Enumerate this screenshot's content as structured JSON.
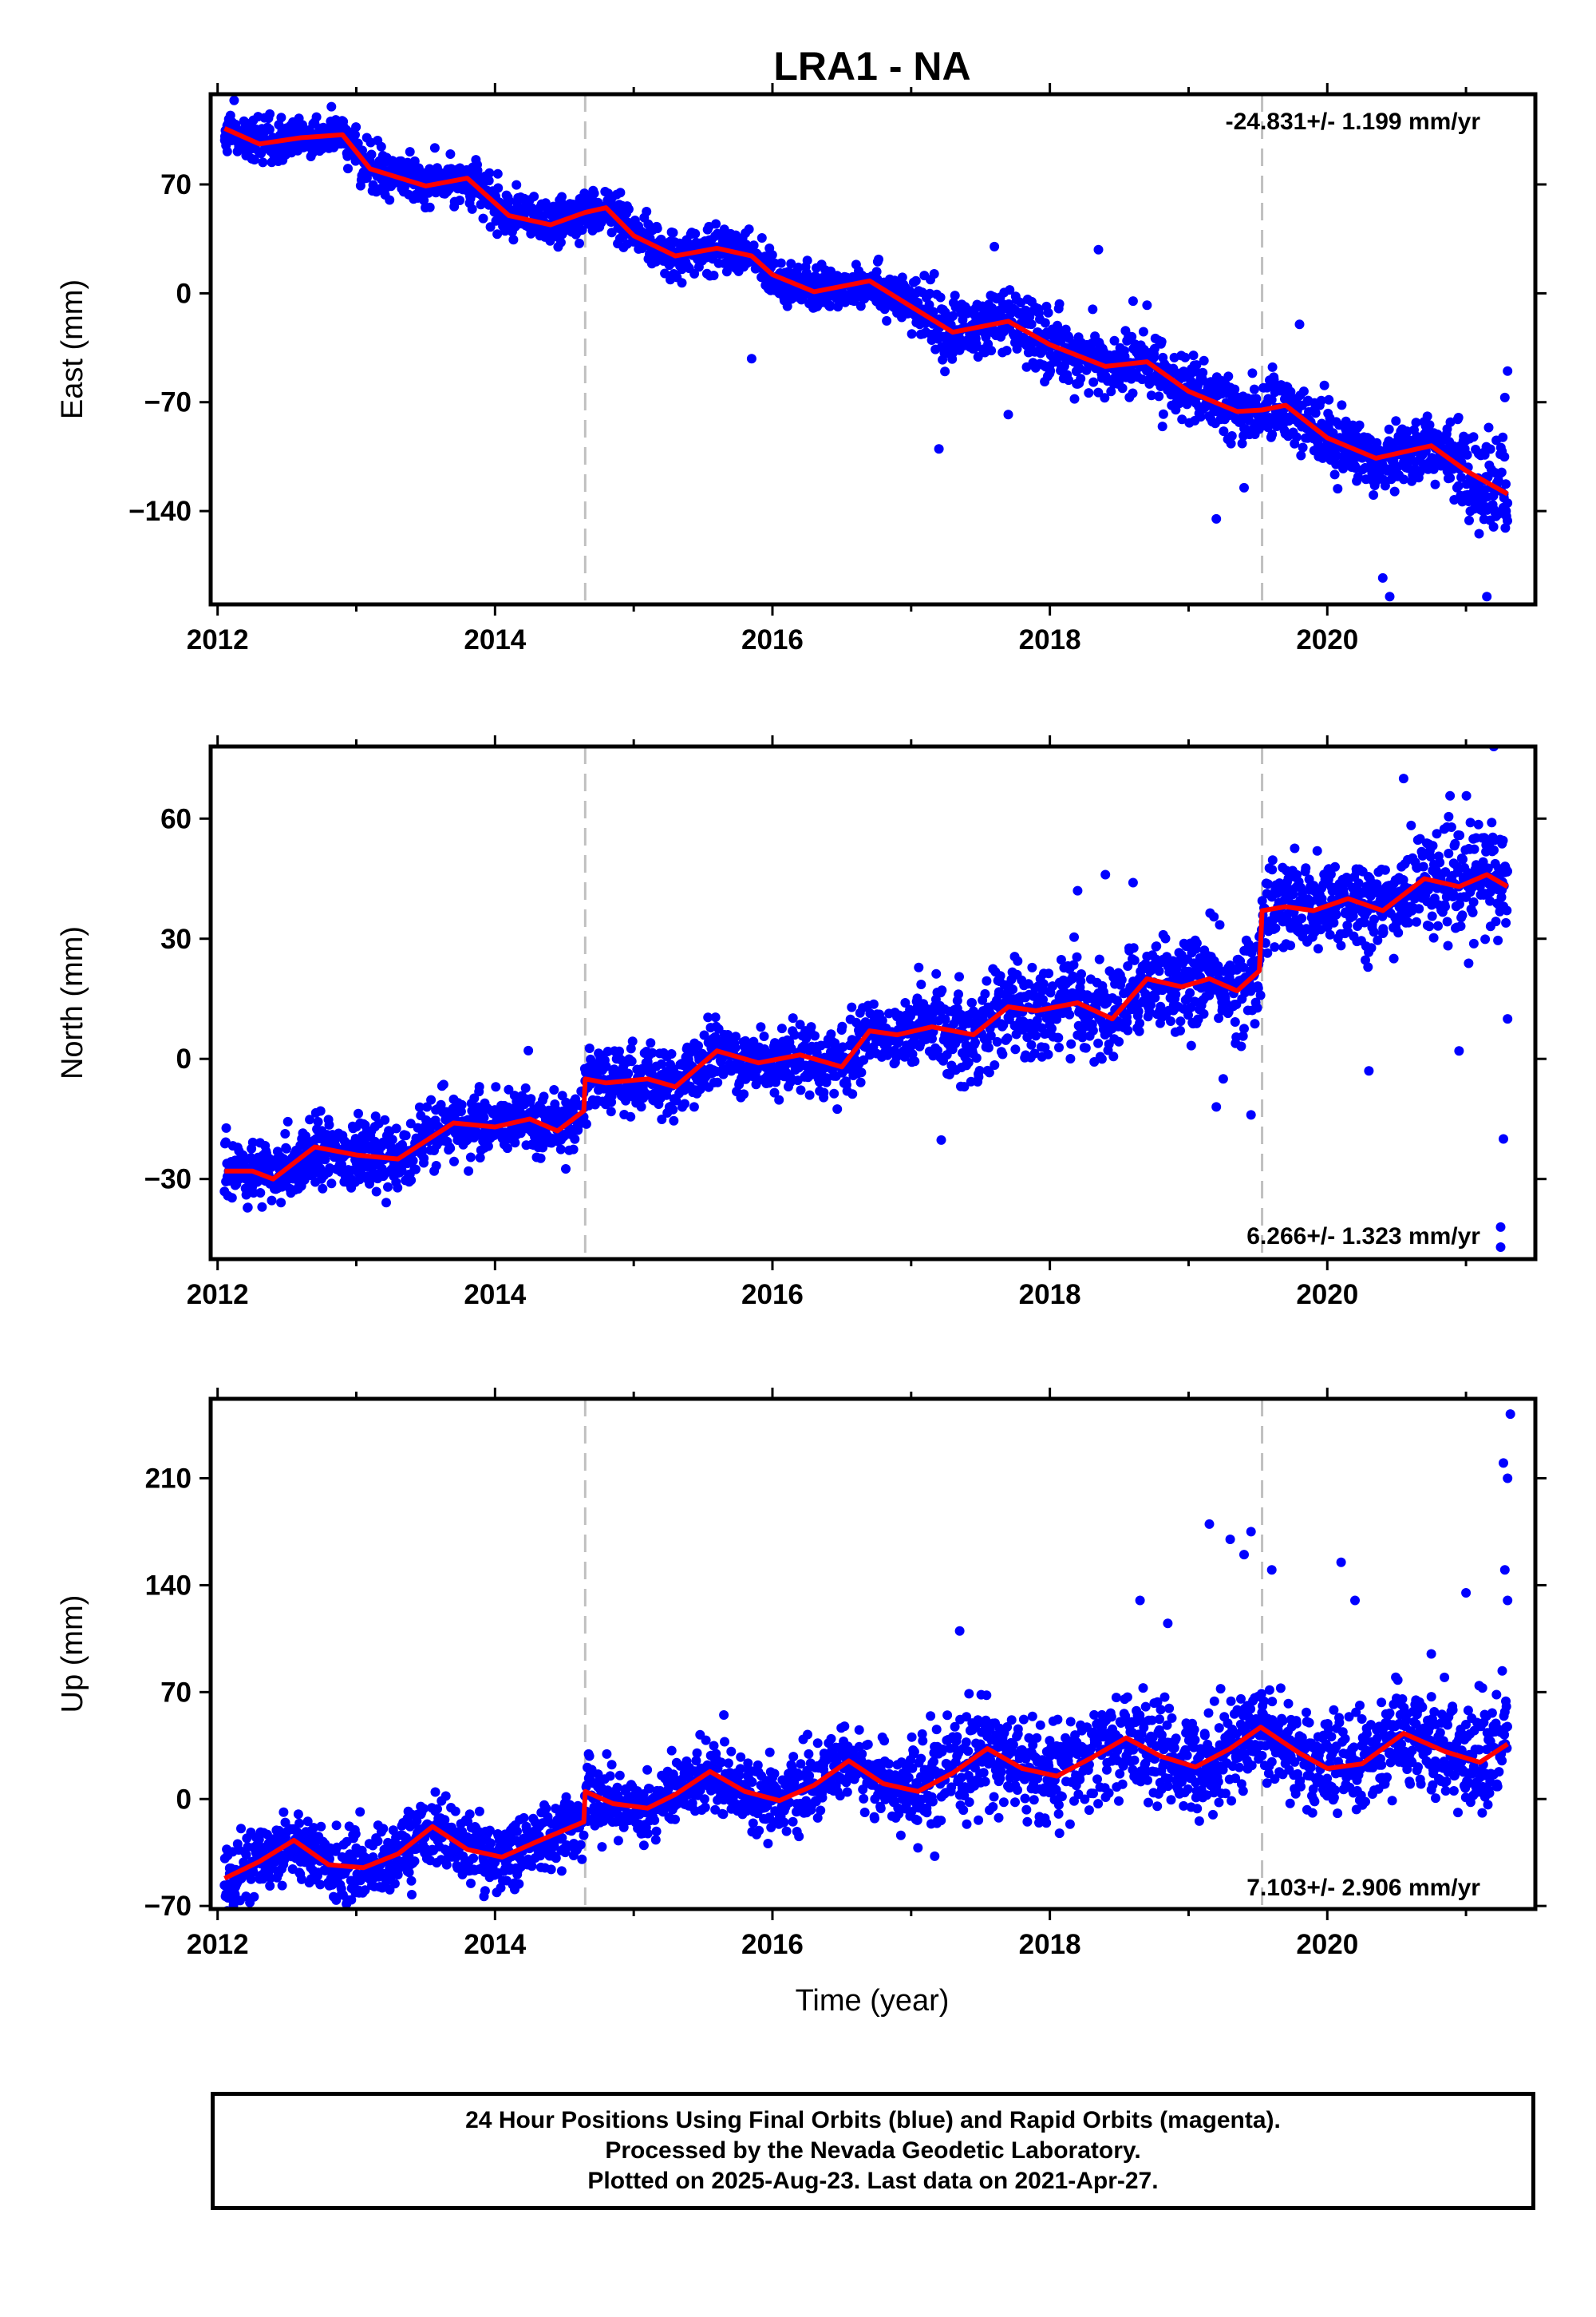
{
  "title": "LRA1 - NA",
  "xlabel": "Time (year)",
  "colors": {
    "final_orbits": "#0000ff",
    "model": "#ff0000",
    "event_lines": "#c0c0c0",
    "frame": "#000000"
  },
  "footer": {
    "line1": "24 Hour Positions Using Final Orbits (blue) and Rapid Orbits (magenta).",
    "line2": "Processed by the Nevada Geodetic Laboratory.",
    "line3": "Plotted on 2025-Aug-23. Last data on 2021-Apr-27."
  },
  "chart_data": [
    {
      "type": "scatter",
      "component": "east",
      "ylabel": "East (mm)",
      "rate_label": "-24.831+/- 1.199 mm/yr",
      "xlim": [
        2011.95,
        2021.5
      ],
      "ylim": [
        -200,
        128
      ],
      "yticks": [
        70,
        0,
        -70,
        -140
      ],
      "xticks": [
        2012,
        2014,
        2016,
        2018,
        2020
      ],
      "event_lines": [
        2014.65,
        2019.53
      ],
      "model": {
        "points": [
          [
            2012.05,
            106
          ],
          [
            2012.3,
            96
          ],
          [
            2012.6,
            100
          ],
          [
            2012.9,
            102
          ],
          [
            2013.1,
            80
          ],
          [
            2013.5,
            69
          ],
          [
            2013.8,
            74
          ],
          [
            2014.1,
            50
          ],
          [
            2014.4,
            44
          ],
          [
            2014.65,
            52
          ],
          [
            2014.8,
            55
          ],
          [
            2015.0,
            37
          ],
          [
            2015.3,
            24
          ],
          [
            2015.6,
            29
          ],
          [
            2015.85,
            24
          ],
          [
            2016.0,
            12
          ],
          [
            2016.3,
            1
          ],
          [
            2016.7,
            8
          ],
          [
            2016.9,
            -3
          ],
          [
            2017.3,
            -25
          ],
          [
            2017.7,
            -18
          ],
          [
            2018.0,
            -33
          ],
          [
            2018.4,
            -47
          ],
          [
            2018.7,
            -44
          ],
          [
            2019.0,
            -63
          ],
          [
            2019.35,
            -76
          ],
          [
            2019.53,
            -75
          ],
          [
            2019.7,
            -72
          ],
          [
            2020.0,
            -93
          ],
          [
            2020.35,
            -106
          ],
          [
            2020.75,
            -98
          ],
          [
            2021.0,
            -114
          ],
          [
            2021.3,
            -129
          ]
        ]
      },
      "scatter": {
        "sigma": 7,
        "outliers": [
          [
            2015.85,
            -42
          ],
          [
            2017.2,
            -100
          ],
          [
            2019.2,
            -145
          ],
          [
            2019.4,
            -125
          ],
          [
            2020.4,
            -183
          ],
          [
            2020.45,
            -195
          ],
          [
            2021.15,
            -195
          ],
          [
            2021.3,
            -50
          ],
          [
            2021.28,
            -67
          ],
          [
            2017.7,
            -78
          ],
          [
            2018.6,
            -5
          ],
          [
            2018.35,
            28
          ],
          [
            2017.6,
            30
          ],
          [
            2019.8,
            -20
          ]
        ]
      }
    },
    {
      "type": "scatter",
      "component": "north",
      "ylabel": "North (mm)",
      "rate_label": "6.266+/- 1.323 mm/yr",
      "xlim": [
        2011.95,
        2021.5
      ],
      "ylim": [
        -50,
        78
      ],
      "yticks": [
        60,
        30,
        0,
        -30
      ],
      "xticks": [
        2012,
        2014,
        2016,
        2018,
        2020
      ],
      "event_lines": [
        2014.65,
        2019.53
      ],
      "model": {
        "points": [
          [
            2012.05,
            -28
          ],
          [
            2012.25,
            -28
          ],
          [
            2012.4,
            -30
          ],
          [
            2012.7,
            -22
          ],
          [
            2013.0,
            -24
          ],
          [
            2013.3,
            -25
          ],
          [
            2013.7,
            -16
          ],
          [
            2014.0,
            -17
          ],
          [
            2014.25,
            -15
          ],
          [
            2014.45,
            -18
          ],
          [
            2014.64,
            -13
          ],
          [
            2014.65,
            -5
          ],
          [
            2014.8,
            -6
          ],
          [
            2015.1,
            -5
          ],
          [
            2015.3,
            -7
          ],
          [
            2015.6,
            2
          ],
          [
            2015.9,
            -1
          ],
          [
            2016.2,
            1
          ],
          [
            2016.5,
            -2
          ],
          [
            2016.7,
            7
          ],
          [
            2016.9,
            6
          ],
          [
            2017.15,
            8
          ],
          [
            2017.45,
            6
          ],
          [
            2017.7,
            13
          ],
          [
            2017.9,
            12
          ],
          [
            2018.2,
            14
          ],
          [
            2018.45,
            10
          ],
          [
            2018.7,
            20
          ],
          [
            2018.95,
            18
          ],
          [
            2019.15,
            20
          ],
          [
            2019.35,
            17
          ],
          [
            2019.51,
            22
          ],
          [
            2019.53,
            37
          ],
          [
            2019.7,
            38
          ],
          [
            2019.9,
            37
          ],
          [
            2020.15,
            40
          ],
          [
            2020.4,
            37
          ],
          [
            2020.7,
            45
          ],
          [
            2020.95,
            43
          ],
          [
            2021.15,
            46
          ],
          [
            2021.3,
            43
          ]
        ]
      },
      "scatter": {
        "sigma": 4,
        "outliers": [
          [
            2018.2,
            42
          ],
          [
            2018.4,
            46
          ],
          [
            2018.6,
            44
          ],
          [
            2019.2,
            -12
          ],
          [
            2019.25,
            -5
          ],
          [
            2019.45,
            -14
          ],
          [
            2020.55,
            70
          ],
          [
            2020.95,
            2
          ],
          [
            2021.25,
            -47
          ],
          [
            2021.25,
            -42
          ],
          [
            2021.27,
            -20
          ],
          [
            2021.3,
            10
          ],
          [
            2021.2,
            78
          ],
          [
            2020.3,
            -3
          ],
          [
            2019.75,
            47
          ]
        ]
      }
    },
    {
      "type": "scatter",
      "component": "up",
      "ylabel": "Up (mm)",
      "rate_label": "7.103+/- 2.906 mm/yr",
      "xlim": [
        2011.95,
        2021.5
      ],
      "ylim": [
        -72,
        262
      ],
      "yticks": [
        210,
        140,
        70,
        0,
        -70
      ],
      "xticks": [
        2012,
        2014,
        2016,
        2018,
        2020
      ],
      "event_lines": [
        2014.65,
        2019.53
      ],
      "model": {
        "points": [
          [
            2012.05,
            -52
          ],
          [
            2012.3,
            -41
          ],
          [
            2012.55,
            -27
          ],
          [
            2012.8,
            -43
          ],
          [
            2013.05,
            -45
          ],
          [
            2013.3,
            -36
          ],
          [
            2013.55,
            -18
          ],
          [
            2013.8,
            -33
          ],
          [
            2014.05,
            -38
          ],
          [
            2014.3,
            -28
          ],
          [
            2014.64,
            -15
          ],
          [
            2014.65,
            5
          ],
          [
            2014.85,
            -3
          ],
          [
            2015.1,
            -6
          ],
          [
            2015.3,
            3
          ],
          [
            2015.55,
            18
          ],
          [
            2015.8,
            5
          ],
          [
            2016.05,
            -1
          ],
          [
            2016.3,
            9
          ],
          [
            2016.55,
            25
          ],
          [
            2016.8,
            10
          ],
          [
            2017.05,
            5
          ],
          [
            2017.3,
            17
          ],
          [
            2017.55,
            33
          ],
          [
            2017.8,
            20
          ],
          [
            2018.05,
            15
          ],
          [
            2018.3,
            27
          ],
          [
            2018.55,
            40
          ],
          [
            2018.8,
            28
          ],
          [
            2019.05,
            21
          ],
          [
            2019.3,
            33
          ],
          [
            2019.52,
            47
          ],
          [
            2019.8,
            30
          ],
          [
            2020.0,
            20
          ],
          [
            2020.25,
            23
          ],
          [
            2020.55,
            43
          ],
          [
            2020.85,
            31
          ],
          [
            2021.1,
            24
          ],
          [
            2021.3,
            36
          ]
        ]
      },
      "scatter": {
        "sigma": 11,
        "outliers": [
          [
            2019.15,
            180
          ],
          [
            2019.3,
            170
          ],
          [
            2019.4,
            160
          ],
          [
            2019.45,
            175
          ],
          [
            2019.6,
            150
          ],
          [
            2020.1,
            155
          ],
          [
            2020.2,
            130
          ],
          [
            2021.0,
            135
          ],
          [
            2021.27,
            220
          ],
          [
            2021.3,
            210
          ],
          [
            2021.32,
            252
          ],
          [
            2021.28,
            150
          ],
          [
            2021.3,
            130
          ],
          [
            2018.65,
            130
          ],
          [
            2018.85,
            115
          ],
          [
            2017.35,
            110
          ],
          [
            2020.75,
            95
          ],
          [
            2015.65,
            55
          ]
        ]
      }
    }
  ]
}
